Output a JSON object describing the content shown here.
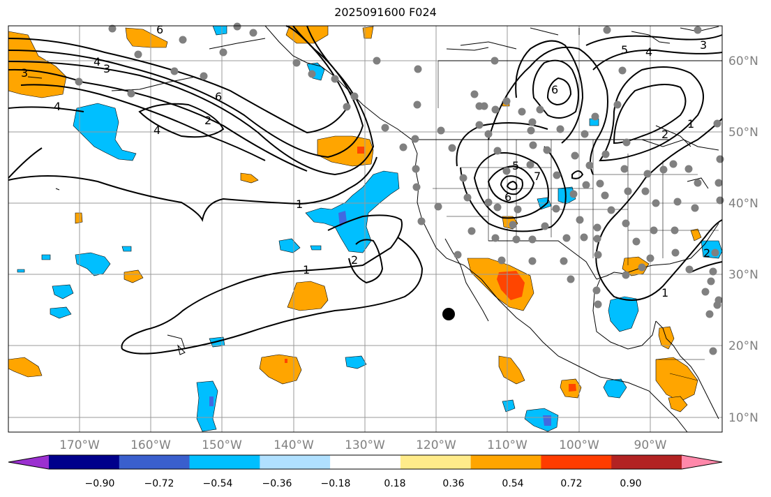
{
  "title": "2025091600 F024",
  "lat_labels": [
    "60°N",
    "50°N",
    "40°N",
    "30°N",
    "20°N",
    "10°N"
  ],
  "lon_labels": [
    "170°W",
    "160°W",
    "150°W",
    "140°W",
    "130°W",
    "120°W",
    "110°W",
    "100°W",
    "90°W"
  ],
  "colorbar": {
    "tick_labels": [
      "−0.90",
      "−0.72",
      "−0.54",
      "−0.36",
      "−0.18",
      "0.18",
      "0.36",
      "0.54",
      "0.72",
      "0.90"
    ],
    "colors": [
      "#9b30d0",
      "#00008b",
      "#3a5fcd",
      "#00bfff",
      "#b0e0ff",
      "#ffffff",
      "#ffeb8a",
      "#ffa500",
      "#ff3c00",
      "#b22222",
      "#ff88aa"
    ]
  },
  "fill_colors": {
    "orange": "#ffa500",
    "red_orange": "#ff4500",
    "light_blue": "#00bfff",
    "blue": "#4169e1"
  },
  "contour_labels": [
    "1",
    "1",
    "1",
    "1",
    "2",
    "2",
    "2",
    "2",
    "3",
    "3",
    "3",
    "4",
    "4",
    "4",
    "4",
    "5",
    "5",
    "6",
    "6",
    "6",
    "6",
    "7"
  ]
}
